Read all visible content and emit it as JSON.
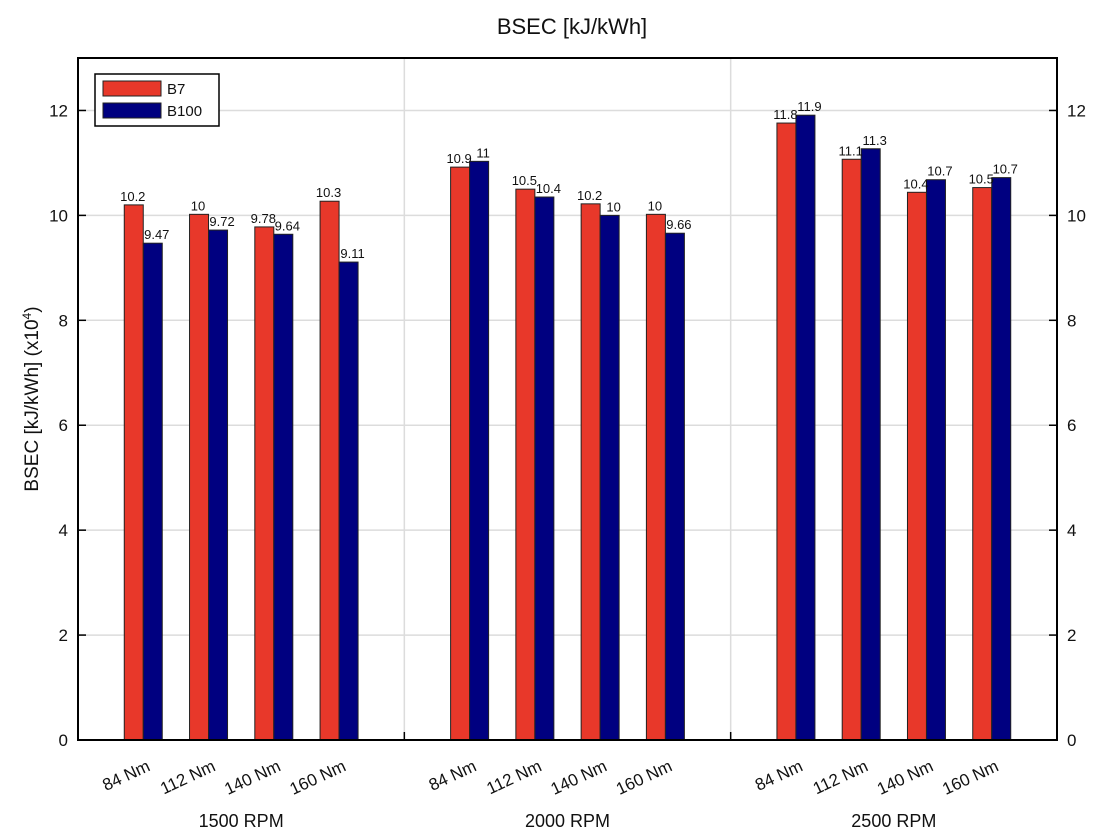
{
  "chart_data": {
    "type": "bar",
    "title": "BSEC [kJ/kWh]",
    "ylabel": "BSEC [kJ/kWh] (x10",
    "ylabel_exponent": "4",
    "ylabel_suffix": ")",
    "ylim": [
      0,
      13
    ],
    "yticks": [
      0,
      2,
      4,
      6,
      8,
      10,
      12
    ],
    "grid": true,
    "legend_position": "top-left",
    "groups": [
      {
        "label": "1500 RPM",
        "categories": [
          "84 Nm",
          "112 Nm",
          "140 Nm",
          "160 Nm"
        ]
      },
      {
        "label": "2000 RPM",
        "categories": [
          "84 Nm",
          "112 Nm",
          "140 Nm",
          "160 Nm"
        ]
      },
      {
        "label": "2500 RPM",
        "categories": [
          "84 Nm",
          "112 Nm",
          "140 Nm",
          "160 Nm"
        ]
      }
    ],
    "series": [
      {
        "name": "B7",
        "color": "#e8382a",
        "values": [
          10.2,
          10.02,
          9.78,
          10.27,
          10.92,
          10.5,
          10.22,
          10.02,
          11.76,
          11.07,
          10.44,
          10.53
        ],
        "labels": [
          "10.2",
          "10",
          "9.78",
          "10.3",
          "10.9",
          "10.5",
          "10.2",
          "10",
          "11.8",
          "11.1",
          "10.4",
          "10.5"
        ]
      },
      {
        "name": "B100",
        "color": "#000080",
        "values": [
          9.47,
          9.72,
          9.64,
          9.11,
          11.03,
          10.35,
          10.0,
          9.66,
          11.91,
          11.27,
          10.68,
          10.72
        ],
        "labels": [
          "9.47",
          "9.72",
          "9.64",
          "9.11",
          "11",
          "10.4",
          "10",
          "9.66",
          "11.9",
          "11.3",
          "10.7",
          "10.7"
        ]
      }
    ]
  }
}
